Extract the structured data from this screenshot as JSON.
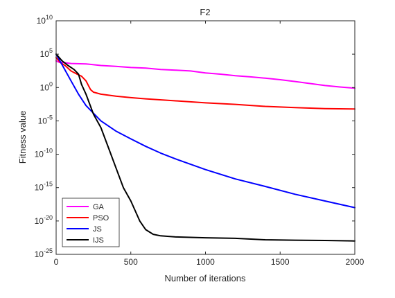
{
  "chart_data": {
    "type": "line",
    "title": "F2",
    "xlabel": "Number of iterations",
    "ylabel": "Fitness value",
    "xlim": [
      0,
      2000
    ],
    "ylim_exp": [
      -25,
      10
    ],
    "yscale": "log",
    "grid": false,
    "legend_placement": "bottom-left",
    "x_ticks": [
      "0",
      "500",
      "1000",
      "1500",
      "2000"
    ],
    "y_tick_exponents": [
      "10",
      "5",
      "0",
      "-5",
      "-10",
      "-15",
      "-20",
      "-25"
    ],
    "y_tick_base": "10",
    "series": [
      {
        "name": "GA",
        "color": "#ff00ff",
        "points": [
          [
            0,
            10000.0
          ],
          [
            20,
            6000.0
          ],
          [
            50,
            5500.0
          ],
          [
            100,
            4000.0
          ],
          [
            200,
            3500.0
          ],
          [
            300,
            2000.0
          ],
          [
            400,
            1500.0
          ],
          [
            500,
            1000.0
          ],
          [
            600,
            800.0
          ],
          [
            700,
            500.0
          ],
          [
            800,
            400.0
          ],
          [
            900,
            300.0
          ],
          [
            1000,
            150.0
          ],
          [
            1100,
            100.0
          ],
          [
            1200,
            60.0
          ],
          [
            1300,
            40.0
          ],
          [
            1400,
            25.0
          ],
          [
            1500,
            15.0
          ],
          [
            1600,
            8
          ],
          [
            1700,
            4
          ],
          [
            1800,
            2
          ],
          [
            1900,
            1.2
          ],
          [
            2000,
            0.8
          ]
        ]
      },
      {
        "name": "PSO",
        "color": "#ff0000",
        "points": [
          [
            0,
            30000.0
          ],
          [
            30,
            5000.0
          ],
          [
            60,
            2000.0
          ],
          [
            100,
            300.0
          ],
          [
            140,
            100.0
          ],
          [
            170,
            50.0
          ],
          [
            200,
            10.0
          ],
          [
            230,
            0.5
          ],
          [
            250,
            0.2
          ],
          [
            300,
            0.1
          ],
          [
            400,
            0.05
          ],
          [
            500,
            0.03
          ],
          [
            600,
            0.02
          ],
          [
            800,
            0.01
          ],
          [
            1000,
            0.005
          ],
          [
            1200,
            0.003
          ],
          [
            1400,
            0.0015
          ],
          [
            1600,
            0.001
          ],
          [
            1800,
            0.0007
          ],
          [
            2000,
            0.0006
          ]
        ]
      },
      {
        "name": "JS",
        "color": "#0000ff",
        "points": [
          [
            0,
            100000.0
          ],
          [
            50,
            1000.0
          ],
          [
            100,
            10.0
          ],
          [
            150,
            0.1
          ],
          [
            200,
            0.002
          ],
          [
            300,
            1e-05
          ],
          [
            400,
            3e-07
          ],
          [
            500,
            2e-08
          ],
          [
            600,
            1.5e-09
          ],
          [
            700,
            1.5e-10
          ],
          [
            800,
            2e-11
          ],
          [
            1000,
            5e-13
          ],
          [
            1200,
            2e-14
          ],
          [
            1400,
            1.5e-15
          ],
          [
            1600,
            1e-16
          ],
          [
            1800,
            1e-17
          ],
          [
            2000,
            1e-18
          ]
        ]
      },
      {
        "name": "IJS",
        "color": "#000000",
        "points": [
          [
            0,
            100000.0
          ],
          [
            40,
            10000.0
          ],
          [
            80,
            2000.0
          ],
          [
            120,
            500.0
          ],
          [
            150,
            100.0
          ],
          [
            170,
            3
          ],
          [
            200,
            0.1
          ],
          [
            250,
            0.0001
          ],
          [
            300,
            1e-06
          ],
          [
            350,
            1e-09
          ],
          [
            400,
            1e-12
          ],
          [
            450,
            1e-15
          ],
          [
            500,
            1e-17
          ],
          [
            520,
            1e-18
          ],
          [
            560,
            1e-20
          ],
          [
            600,
            5e-22
          ],
          [
            650,
            1e-22
          ],
          [
            700,
            6e-23
          ],
          [
            800,
            4e-23
          ],
          [
            1000,
            3e-23
          ],
          [
            1200,
            2.5e-23
          ],
          [
            1400,
            1.5e-23
          ],
          [
            1600,
            1.3e-23
          ],
          [
            1800,
            1.2e-23
          ],
          [
            2000,
            1e-23
          ]
        ]
      }
    ]
  }
}
